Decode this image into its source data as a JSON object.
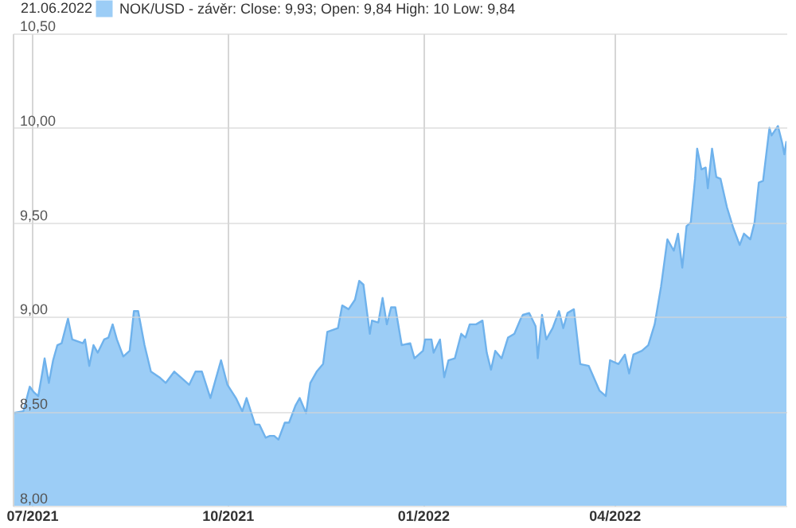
{
  "chart_data": {
    "type": "area",
    "title": "21.06.2022",
    "x": [
      "2021-06-22",
      "2021-06-27",
      "2021-06-30",
      "2021-07-02",
      "2021-07-04",
      "2021-07-06",
      "2021-07-07",
      "2021-07-09",
      "2021-07-11",
      "2021-07-13",
      "2021-07-15",
      "2021-07-18",
      "2021-07-20",
      "2021-07-25",
      "2021-07-26",
      "2021-07-28",
      "2021-07-30",
      "2021-08-01",
      "2021-08-04",
      "2021-08-06",
      "2021-08-08",
      "2021-08-10",
      "2021-08-13",
      "2021-08-16",
      "2021-08-18",
      "2021-08-20",
      "2021-08-23",
      "2021-08-26",
      "2021-08-30",
      "2021-09-02",
      "2021-09-06",
      "2021-09-09",
      "2021-09-13",
      "2021-09-16",
      "2021-09-19",
      "2021-09-23",
      "2021-09-28",
      "2021-10-01",
      "2021-10-05",
      "2021-10-08",
      "2021-10-10",
      "2021-10-14",
      "2021-10-16",
      "2021-10-19",
      "2021-10-21",
      "2021-10-23",
      "2021-10-25",
      "2021-10-28",
      "2021-10-30",
      "2021-11-02",
      "2021-11-04",
      "2021-11-07",
      "2021-11-09",
      "2021-11-12",
      "2021-11-15",
      "2021-11-17",
      "2021-11-22",
      "2021-11-24",
      "2021-11-27",
      "2021-11-30",
      "2021-12-02",
      "2021-12-04",
      "2021-12-07",
      "2021-12-08",
      "2021-12-11",
      "2021-12-13",
      "2021-12-15",
      "2021-12-17",
      "2021-12-19",
      "2021-12-22",
      "2021-12-26",
      "2021-12-28",
      "2022-01-01",
      "2022-01-02",
      "2022-01-05",
      "2022-01-06",
      "2022-01-09",
      "2022-01-11",
      "2022-01-13",
      "2022-01-16",
      "2022-01-19",
      "2022-01-21",
      "2022-01-23",
      "2022-01-26",
      "2022-01-29",
      "2022-01-31",
      "2022-02-02",
      "2022-02-04",
      "2022-02-07",
      "2022-02-10",
      "2022-02-13",
      "2022-02-16",
      "2022-02-17",
      "2022-02-20",
      "2022-02-23",
      "2022-02-24",
      "2022-02-26",
      "2022-02-28",
      "2022-03-03",
      "2022-03-06",
      "2022-03-08",
      "2022-03-10",
      "2022-03-13",
      "2022-03-16",
      "2022-03-20",
      "2022-03-25",
      "2022-03-28",
      "2022-03-30",
      "2022-04-03",
      "2022-04-06",
      "2022-04-08",
      "2022-04-10",
      "2022-04-14",
      "2022-04-17",
      "2022-04-20",
      "2022-04-23",
      "2022-04-26",
      "2022-04-29",
      "2022-05-01",
      "2022-05-03",
      "2022-05-05",
      "2022-05-07",
      "2022-05-09",
      "2022-05-10",
      "2022-05-12",
      "2022-05-14",
      "2022-05-15",
      "2022-05-17",
      "2022-05-19",
      "2022-05-21",
      "2022-05-24",
      "2022-05-27",
      "2022-05-30",
      "2022-06-01",
      "2022-06-04",
      "2022-06-06",
      "2022-06-08",
      "2022-06-10",
      "2022-06-13",
      "2022-06-14",
      "2022-06-17",
      "2022-06-19",
      "2022-06-20",
      "2022-06-21"
    ],
    "series": [
      {
        "name": "NOK/USD - závěr: Close: 9,93; Open: 9,84 High: 10 Low: 9,84",
        "color": "#9ccdf6",
        "values": [
          8.49,
          8.5,
          8.63,
          8.6,
          8.58,
          8.71,
          8.78,
          8.65,
          8.77,
          8.85,
          8.86,
          8.99,
          8.88,
          8.86,
          8.88,
          8.74,
          8.85,
          8.81,
          8.88,
          8.89,
          8.96,
          8.88,
          8.79,
          8.82,
          9.03,
          9.03,
          8.85,
          8.71,
          8.68,
          8.65,
          8.71,
          8.68,
          8.64,
          8.71,
          8.71,
          8.57,
          8.77,
          8.64,
          8.57,
          8.5,
          8.57,
          8.43,
          8.43,
          8.36,
          8.37,
          8.37,
          8.35,
          8.44,
          8.44,
          8.53,
          8.57,
          8.49,
          8.65,
          8.71,
          8.75,
          8.92,
          8.94,
          9.06,
          9.04,
          9.09,
          9.19,
          9.17,
          8.91,
          8.98,
          8.97,
          9.1,
          8.96,
          9.05,
          9.05,
          8.85,
          8.86,
          8.78,
          8.82,
          8.88,
          8.88,
          8.81,
          8.88,
          8.68,
          8.77,
          8.78,
          8.91,
          8.89,
          8.96,
          8.96,
          8.98,
          8.81,
          8.72,
          8.82,
          8.78,
          8.89,
          8.91,
          8.99,
          9.01,
          9.02,
          8.95,
          8.78,
          9.01,
          8.88,
          8.94,
          9.03,
          8.94,
          9.02,
          9.04,
          8.75,
          8.74,
          8.61,
          8.58,
          8.77,
          8.75,
          8.8,
          8.7,
          8.8,
          8.82,
          8.85,
          8.96,
          9.16,
          9.41,
          9.35,
          9.44,
          9.26,
          9.48,
          9.5,
          9.73,
          9.89,
          9.78,
          9.79,
          9.68,
          9.89,
          9.74,
          9.73,
          9.58,
          9.47,
          9.38,
          9.44,
          9.41,
          9.5,
          9.71,
          9.72,
          10.0,
          9.96,
          10.01,
          9.92,
          9.86,
          9.93
        ]
      }
    ],
    "xlim": [
      "2021-06-22",
      "2022-06-21"
    ],
    "xticks": [
      {
        "value": "2021-07-01",
        "label": "07/2021"
      },
      {
        "value": "2021-10-01",
        "label": "10/2021"
      },
      {
        "value": "2022-01-01",
        "label": "01/2022"
      },
      {
        "value": "2022-04-01",
        "label": "04/2022"
      }
    ],
    "ylim": [
      8,
      10.5
    ],
    "yticks": [
      {
        "value": 8,
        "label": "8,00"
      },
      {
        "value": 8.5,
        "label": "8,50"
      },
      {
        "value": 9,
        "label": "9,00"
      },
      {
        "value": 9.5,
        "label": "9,50"
      },
      {
        "value": 10,
        "label": "10,00"
      },
      {
        "value": 10.5,
        "label": "10,50"
      }
    ],
    "grid": true,
    "legend": "top left"
  }
}
